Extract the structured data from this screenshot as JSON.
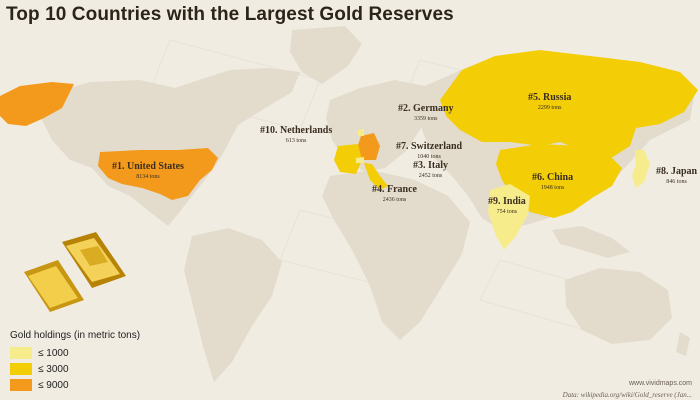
{
  "title": "Top 10 Countries with the Largest Gold Reserves",
  "colors": {
    "background": "#f1ece2",
    "land": "#e3dccd",
    "tier_low": "#f7ec8c",
    "tier_mid": "#f3cd06",
    "tier_high": "#f39a1c"
  },
  "countries": [
    {
      "name": "#1. United States",
      "tons": "8134 tons",
      "tier": "high"
    },
    {
      "name": "#2. Germany",
      "tons": "3359 tons",
      "tier": "high"
    },
    {
      "name": "#4. France",
      "tons": "2436 tons",
      "tier": "mid"
    },
    {
      "name": "#3. Italy",
      "tons": "2452 tons",
      "tier": "mid"
    },
    {
      "name": "#5. Russia",
      "tons": "2299 tons",
      "tier": "mid"
    },
    {
      "name": "#6. China",
      "tons": "1948 tons",
      "tier": "mid"
    },
    {
      "name": "#7. Switzerland",
      "tons": "1040 tons",
      "tier": "mid"
    },
    {
      "name": "#8. Japan",
      "tons": "846 tons",
      "tier": "low"
    },
    {
      "name": "#9. India",
      "tons": "754 tons",
      "tier": "low"
    },
    {
      "name": "#10. Netherlands",
      "tons": "613 tons",
      "tier": "low"
    }
  ],
  "legend": {
    "title": "Gold holdings (in metric tons)",
    "items": [
      {
        "label": "≤ 1000",
        "color": "#f7ec8c"
      },
      {
        "label": "≤ 3000",
        "color": "#f3cd06"
      },
      {
        "label": "≤ 9000",
        "color": "#f39a1c"
      }
    ]
  },
  "credit": "www.vividmaps.com",
  "source": "Data: wikipedia.org/wiki/Gold_reserve (Jan..."
}
